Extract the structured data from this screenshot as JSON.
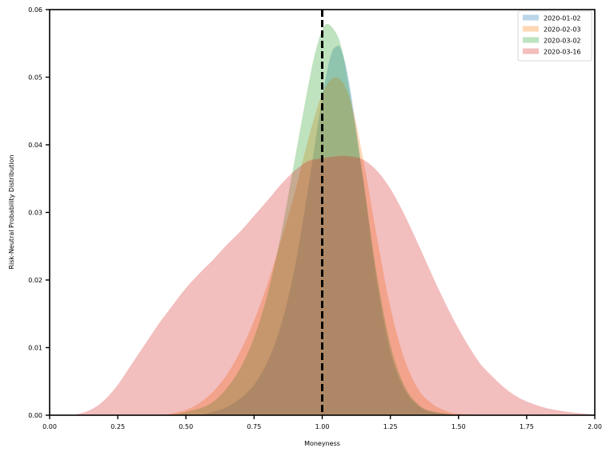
{
  "chart_data": {
    "type": "area",
    "title": "",
    "xlabel": "Moneyness",
    "ylabel": "Risk-Neutral Probability Distribution",
    "xlim": [
      0.0,
      2.0
    ],
    "ylim": [
      0.0,
      0.06
    ],
    "xticks": [
      "0.00",
      "0.25",
      "0.50",
      "0.75",
      "1.00",
      "1.25",
      "1.50",
      "1.75",
      "2.00"
    ],
    "yticks": [
      "0.00",
      "0.01",
      "0.02",
      "0.03",
      "0.04",
      "0.05",
      "0.06"
    ],
    "grid": false,
    "legend_position": "upper right",
    "vline": {
      "x": 1.0,
      "style": "dashed",
      "color": "#000000"
    },
    "series": [
      {
        "name": "2020-01-02",
        "color": "#1f77b4",
        "x": [
          0.55,
          0.6,
          0.65,
          0.7,
          0.75,
          0.8,
          0.85,
          0.9,
          0.95,
          1.0,
          1.03,
          1.05,
          1.07,
          1.1,
          1.15,
          1.2,
          1.25,
          1.3,
          1.35,
          1.4,
          1.5
        ],
        "values": [
          0.0,
          0.0005,
          0.0012,
          0.0025,
          0.0045,
          0.008,
          0.0135,
          0.022,
          0.034,
          0.047,
          0.053,
          0.0545,
          0.054,
          0.049,
          0.035,
          0.02,
          0.0095,
          0.004,
          0.0015,
          0.0005,
          0.0
        ]
      },
      {
        "name": "2020-02-03",
        "color": "#ff7f0e",
        "x": [
          0.42,
          0.5,
          0.55,
          0.6,
          0.65,
          0.7,
          0.75,
          0.8,
          0.85,
          0.9,
          0.95,
          1.0,
          1.05,
          1.1,
          1.15,
          1.2,
          1.25,
          1.3,
          1.35,
          1.4,
          1.45,
          1.5,
          1.6
        ],
        "values": [
          0.0,
          0.0008,
          0.0018,
          0.0035,
          0.006,
          0.0095,
          0.014,
          0.0195,
          0.026,
          0.033,
          0.041,
          0.0475,
          0.05,
          0.047,
          0.038,
          0.0265,
          0.016,
          0.0085,
          0.004,
          0.0018,
          0.0007,
          0.0002,
          0.0
        ]
      },
      {
        "name": "2020-03-02",
        "color": "#2ca02c",
        "x": [
          0.45,
          0.55,
          0.6,
          0.65,
          0.7,
          0.75,
          0.8,
          0.85,
          0.9,
          0.95,
          0.98,
          1.01,
          1.04,
          1.07,
          1.1,
          1.15,
          1.2,
          1.25,
          1.3,
          1.35,
          1.4,
          1.5
        ],
        "values": [
          0.0,
          0.001,
          0.002,
          0.004,
          0.007,
          0.0115,
          0.018,
          0.027,
          0.038,
          0.049,
          0.0545,
          0.0577,
          0.0572,
          0.0545,
          0.048,
          0.035,
          0.021,
          0.0105,
          0.0045,
          0.0017,
          0.0006,
          0.0
        ]
      },
      {
        "name": "2020-03-16",
        "color": "#d62728",
        "x": [
          0.09,
          0.15,
          0.2,
          0.25,
          0.3,
          0.35,
          0.4,
          0.45,
          0.5,
          0.55,
          0.6,
          0.65,
          0.7,
          0.75,
          0.8,
          0.85,
          0.9,
          0.95,
          1.0,
          1.05,
          1.1,
          1.15,
          1.2,
          1.25,
          1.3,
          1.35,
          1.4,
          1.45,
          1.5,
          1.55,
          1.6,
          1.7,
          1.8,
          1.9,
          2.0
        ],
        "values": [
          0.0,
          0.0008,
          0.0022,
          0.0045,
          0.0075,
          0.0105,
          0.0135,
          0.0162,
          0.0188,
          0.021,
          0.023,
          0.0252,
          0.0272,
          0.0295,
          0.0318,
          0.0342,
          0.0362,
          0.0376,
          0.038,
          0.0383,
          0.0383,
          0.0378,
          0.0362,
          0.0335,
          0.0298,
          0.0255,
          0.021,
          0.0167,
          0.0128,
          0.0094,
          0.0067,
          0.0031,
          0.0013,
          0.0005,
          0.0001
        ]
      }
    ]
  },
  "legend": {
    "items": [
      {
        "label": "2020-01-02"
      },
      {
        "label": "2020-02-03"
      },
      {
        "label": "2020-03-02"
      },
      {
        "label": "2020-03-16"
      }
    ]
  },
  "axes": {
    "xlabel": "Moneyness",
    "ylabel": "Risk-Neutral Probability Distribution"
  }
}
